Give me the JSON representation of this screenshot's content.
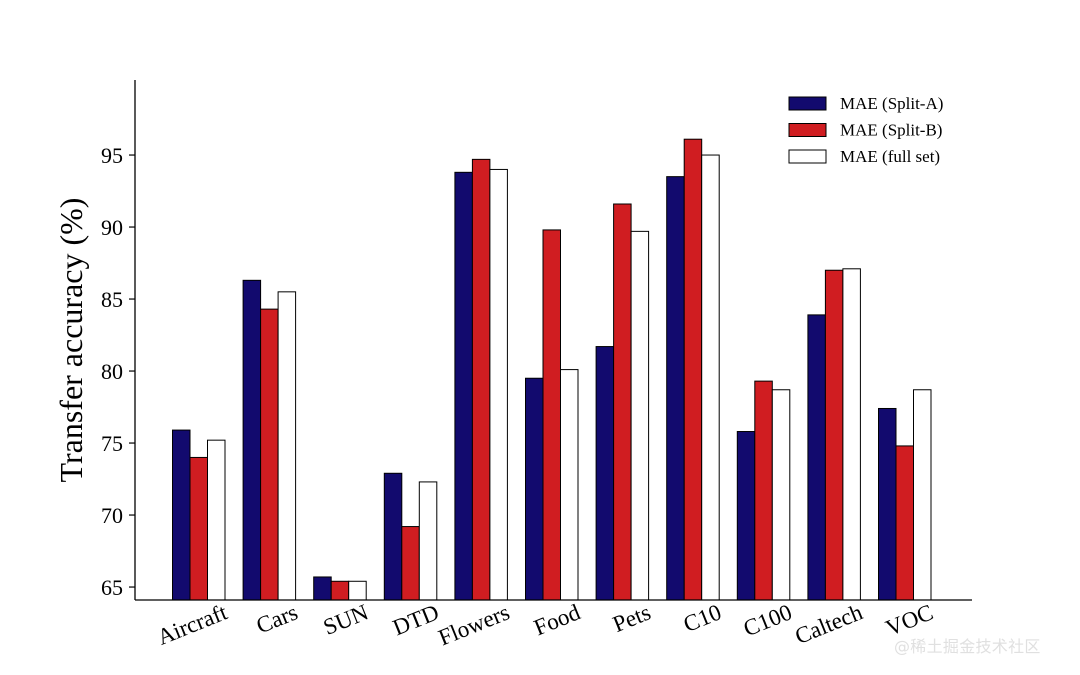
{
  "watermark": "@稀土掘金技术社区",
  "chart_data": {
    "type": "bar",
    "title": "",
    "xlabel": "",
    "ylabel": "Transfer accuracy (%)",
    "ylim": [
      64.1,
      100
    ],
    "yticks": [
      65,
      70,
      75,
      80,
      85,
      90,
      95
    ],
    "grid": false,
    "legend_position": "top-right",
    "categories": [
      "Aircraft",
      "Cars",
      "SUN",
      "DTD",
      "Flowers",
      "Food",
      "Pets",
      "C10",
      "C100",
      "Caltech",
      "VOC"
    ],
    "series": [
      {
        "name": "MAE (Split-A)",
        "color": "#120a6e",
        "values": [
          75.9,
          86.3,
          65.7,
          72.9,
          93.8,
          79.5,
          81.7,
          93.5,
          75.8,
          83.9,
          77.4
        ]
      },
      {
        "name": "MAE (Split-B)",
        "color": "#d01d21",
        "values": [
          74.0,
          84.3,
          65.4,
          69.2,
          94.7,
          89.8,
          91.6,
          96.1,
          79.3,
          87.0,
          74.8
        ]
      },
      {
        "name": "MAE (full set)",
        "color": "#ffffff",
        "values": [
          75.2,
          85.5,
          65.4,
          72.3,
          94.0,
          80.1,
          89.7,
          95.0,
          78.7,
          87.1,
          78.7
        ]
      }
    ]
  }
}
